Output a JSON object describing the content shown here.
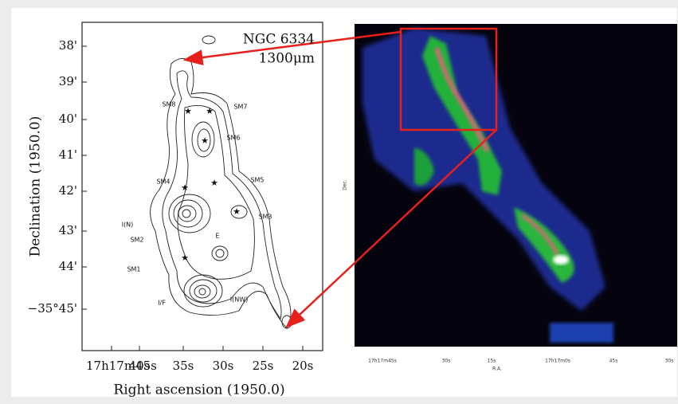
{
  "left_panel": {
    "title": "NGC 6334",
    "wavelength": "1300μm",
    "y_axis_title": "Declination (1950.0)",
    "x_axis_title": "Right ascension (1950.0)",
    "y_ticks": [
      "38'",
      "39'",
      "40'",
      "41'",
      "42'",
      "43'",
      "44'",
      "−35°45'"
    ],
    "x_ticks": [
      "17h17m45s",
      "40s",
      "35s",
      "30s",
      "25s",
      "20s"
    ],
    "sources": [
      "SM8",
      "SM7",
      "SM6",
      "SM4",
      "SM5",
      "I(N)",
      "SM3",
      "SM2",
      "E",
      "SM1",
      "I/F",
      "I(NW)"
    ]
  },
  "right_panel": {
    "x_ticks": [
      "17h17m45s",
      "30s",
      "15s",
      "17h17m0s",
      "45s",
      "30s"
    ],
    "x_axis_title": "R.A.",
    "y_axis_title": "Dec."
  }
}
